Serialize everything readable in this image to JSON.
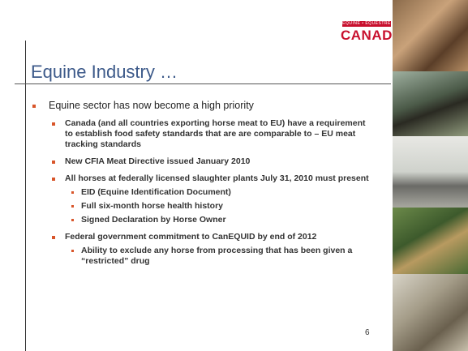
{
  "logo": {
    "tagline": "EQUINE • ÉQUESTRE",
    "name": "CANADA"
  },
  "title": "Equine Industry …",
  "bullets": [
    {
      "text": "Equine sector has now become a high priority",
      "children": [
        {
          "text": "Canada (and all countries exporting horse meat to EU) have a requirement to establish food safety standards that are are comparable to – EU meat tracking standards",
          "children": []
        },
        {
          "text": "New CFIA Meat Directive issued January 2010",
          "children": []
        },
        {
          "text": "All horses at federally licensed slaughter plants July 31, 2010 must present",
          "children": [
            {
              "text": "EID (Equine Identification Document)"
            },
            {
              "text": "Full six-month horse health history"
            },
            {
              "text": "Signed Declaration by Horse Owner"
            }
          ]
        },
        {
          "text": "Federal government commitment to CanEQUID by end of 2012",
          "children": [
            {
              "text": "Ability to exclude any horse from processing that has been given a “restricted” drug"
            }
          ]
        }
      ]
    }
  ],
  "page_number": "6"
}
